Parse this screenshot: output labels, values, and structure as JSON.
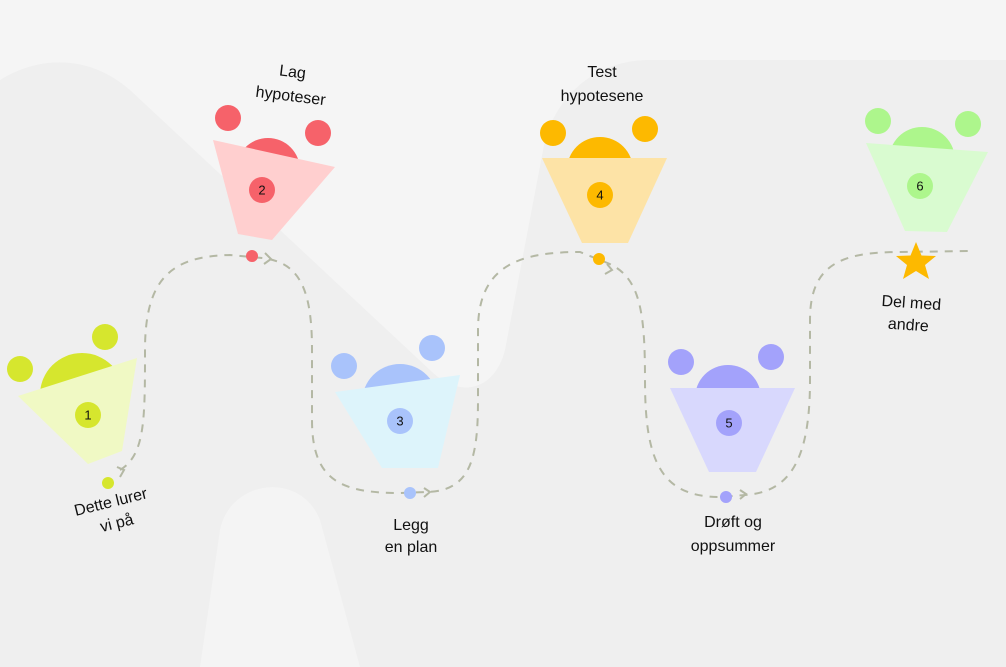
{
  "steps": [
    {
      "number": "1",
      "label_lines": [
        "Dette lurer",
        "vi på"
      ],
      "accent": "#d6e62e",
      "cone": "#f0f9c4"
    },
    {
      "number": "2",
      "label_lines": [
        "Lag",
        "hypoteser"
      ],
      "accent": "#f6626a",
      "cone": "#ffcfcf"
    },
    {
      "number": "3",
      "label_lines": [
        "Legg",
        "en plan"
      ],
      "accent": "#a9c3fb",
      "cone": "#ddf4fb"
    },
    {
      "number": "4",
      "label_lines": [
        "Test",
        "hypotesene"
      ],
      "accent": "#fdb900",
      "cone": "#fde3a6"
    },
    {
      "number": "5",
      "label_lines": [
        "Drøft og",
        "oppsummer"
      ],
      "accent": "#a3a2fb",
      "cone": "#d8d8fd"
    },
    {
      "number": "6",
      "label_lines": [
        "Del med",
        "andre"
      ],
      "accent": "#adf68c",
      "cone": "#d9fbd0"
    }
  ],
  "goal_icon": "star-icon",
  "goal_color": "#fdb900",
  "path_color": "#b4b8a4",
  "background": "#efefef"
}
